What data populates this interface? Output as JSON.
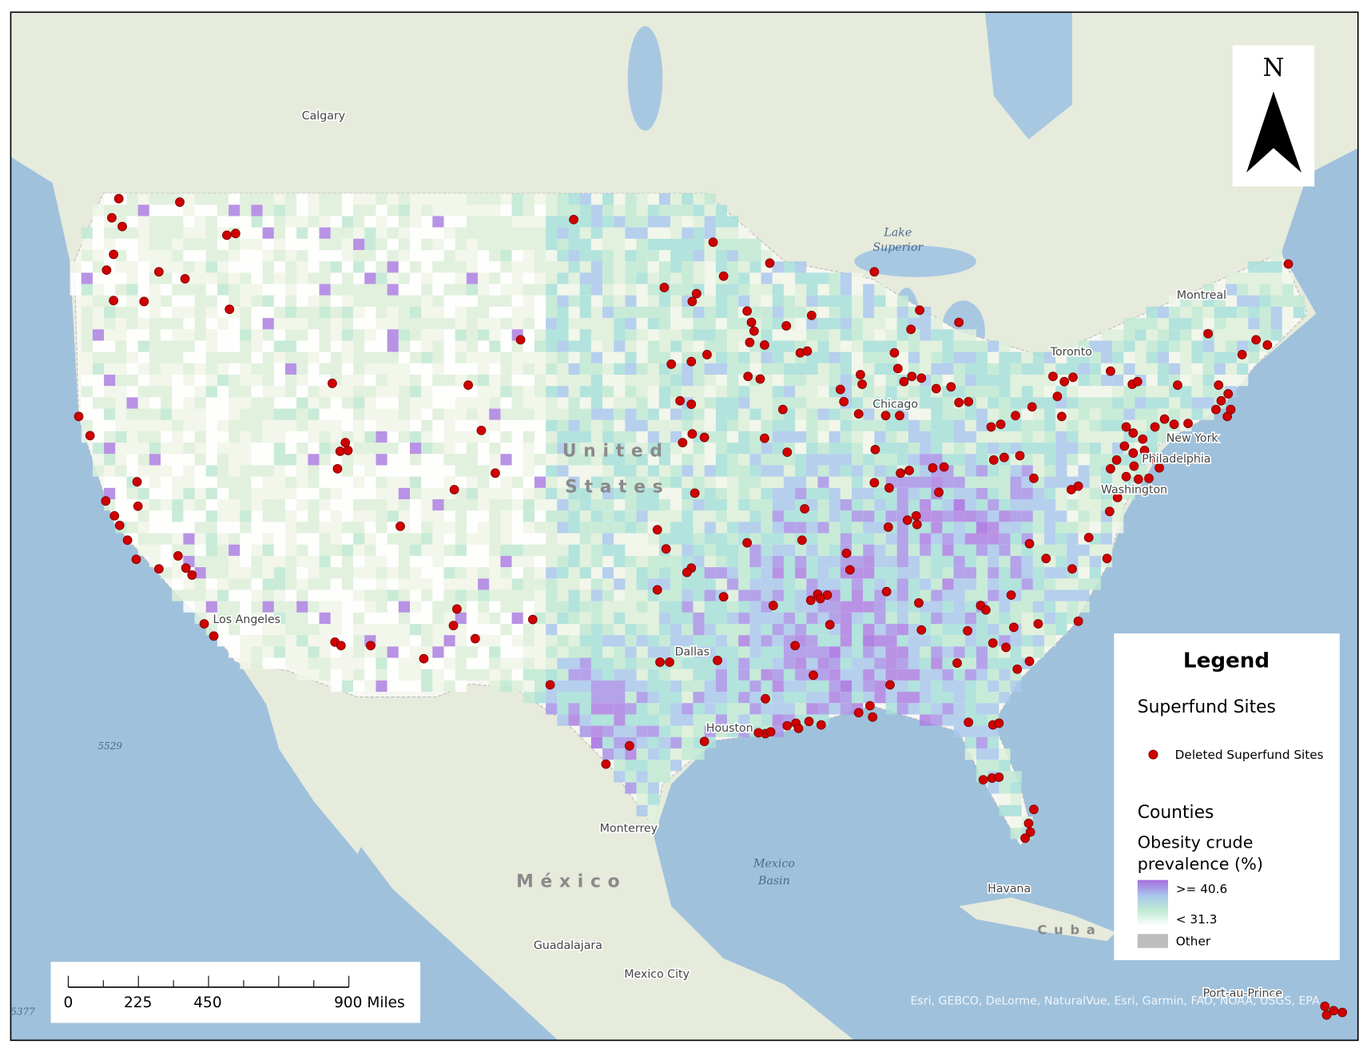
{
  "map": {
    "place_labels": [
      "Calgary",
      "Montreal",
      "Toronto",
      "Chicago",
      "New York",
      "Philadelphia",
      "Washington",
      "Los Angeles",
      "Dallas",
      "Houston",
      "Monterrey",
      "Guadalajara",
      "Mexico City",
      "Havana",
      "Port-au-Prince"
    ],
    "country_labels": [
      "United",
      "States",
      "México",
      "Cuba"
    ],
    "lake_label": [
      "Lake",
      "Superior"
    ],
    "basin_label": [
      "Mexico",
      "Basin"
    ],
    "depth_labels": [
      "5529",
      "5377"
    ],
    "north_arrow": "N",
    "attribution": "Esri, GEBCO, DeLorme, NaturalVue, Esri, Garmin, FAO, NOAA, USGS, EPA",
    "scale_bar": [
      "0",
      "225",
      "450",
      "900 Miles"
    ],
    "legend": {
      "title": "Legend",
      "sites_heading": "Superfund Sites",
      "sites_item": "Deleted Superfund Sites",
      "counties_heading": "Counties",
      "counties_subtitle": [
        "Obesity crude",
        "prevalence (%)"
      ],
      "high": ">= 40.6",
      "low": "< 31.3",
      "other": "Other"
    }
  }
}
